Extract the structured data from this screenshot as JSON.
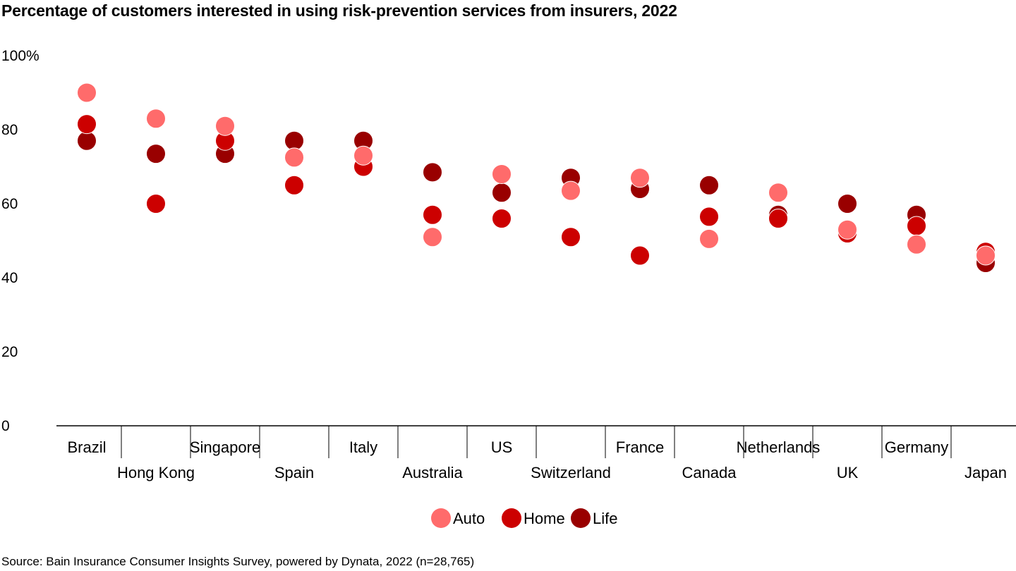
{
  "chart_data": {
    "type": "scatter",
    "title": "Percentage of customers interested in using risk-prevention services from insurers, 2022",
    "source": "Source: Bain Insurance Consumer Insights Survey, powered by Dynata, 2022 (n=28,765)",
    "ylim": [
      0,
      100
    ],
    "yticks": [
      0,
      20,
      40,
      60,
      80,
      100
    ],
    "ytick_labels": [
      "0",
      "20",
      "40",
      "60",
      "80",
      "100%"
    ],
    "grid": false,
    "legend": "bottom",
    "categories": [
      "Brazil",
      "Hong Kong",
      "Singapore",
      "Spain",
      "Italy",
      "Australia",
      "US",
      "Switzerland",
      "France",
      "Canada",
      "Netherlands",
      "UK",
      "Germany",
      "Japan"
    ],
    "series": [
      {
        "name": "Life",
        "color": "#990000",
        "values": [
          77,
          73.5,
          73.5,
          77,
          77,
          68.5,
          63,
          67,
          64,
          65,
          57,
          60,
          57,
          44
        ]
      },
      {
        "name": "Home",
        "color": "#cc0000",
        "values": [
          81.5,
          60,
          77,
          65,
          70,
          57,
          56,
          51,
          46,
          56.5,
          56,
          52,
          54,
          47
        ]
      },
      {
        "name": "Auto",
        "color": "#ff6b6b",
        "values": [
          90,
          83,
          81,
          72.5,
          73,
          51,
          68,
          63.5,
          67,
          50.5,
          63,
          53,
          49,
          46
        ]
      }
    ],
    "legend_order": [
      "Auto",
      "Home",
      "Life"
    ]
  }
}
